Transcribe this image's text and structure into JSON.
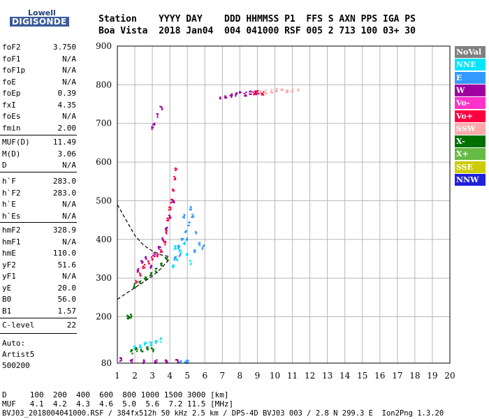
{
  "logo": {
    "line1": "Lowell",
    "line2": "DIGISONDE"
  },
  "header": {
    "line1": "Station    YYYY DAY    DDD HHMMSS P1  FFS S AXN PPS IGA PS",
    "line2": "Boa Vista  2018 Jan04  004 041000 RSF 005 2 713 100 03+ 30"
  },
  "params_group1": [
    {
      "key": "foF2",
      "value": "3.750"
    },
    {
      "key": "foF1",
      "value": "N/A"
    },
    {
      "key": "foF1p",
      "value": "N/A"
    },
    {
      "key": "foE",
      "value": "N/A"
    },
    {
      "key": "foEp",
      "value": "0.39"
    },
    {
      "key": "fxI",
      "value": "4.35"
    },
    {
      "key": "foEs",
      "value": "N/A"
    },
    {
      "key": "fmin",
      "value": "2.00"
    }
  ],
  "params_group2": [
    {
      "key": "MUF(D)",
      "value": "11.49"
    },
    {
      "key": "M(D)",
      "value": "3.06"
    },
    {
      "key": "D",
      "value": "N/A"
    }
  ],
  "params_group3": [
    {
      "key": "h`F",
      "value": "283.0"
    },
    {
      "key": "h`F2",
      "value": "283.0"
    },
    {
      "key": "h`E",
      "value": "N/A"
    },
    {
      "key": "h`Es",
      "value": "N/A"
    }
  ],
  "params_group4": [
    {
      "key": "hmF2",
      "value": "328.9"
    },
    {
      "key": "hmF1",
      "value": "N/A"
    },
    {
      "key": "hmE",
      "value": "110.0"
    },
    {
      "key": "yF2",
      "value": "51.6"
    },
    {
      "key": "yF1",
      "value": "N/A"
    },
    {
      "key": "yE",
      "value": "20.0"
    },
    {
      "key": "B0",
      "value": "56.0"
    },
    {
      "key": "B1",
      "value": "1.57"
    }
  ],
  "params_group5": [
    {
      "key": "C-level",
      "value": "22"
    }
  ],
  "auto": {
    "line1": "Auto:",
    "line2": "Artist5",
    "line3": "500200"
  },
  "footer": {
    "line1": "D     100  200  400  600  800 1000 1500 3000 [km]",
    "line2": "MUF   4.1  4.2  4.3  4.6  5.0  5.6  7.2 11.5 [MHz]",
    "line3": "BVJ03_2018004041000.RSF / 384fx512h 50 kHz 2.5 km / DPS-4D BVJ03 003 / 2.8 N 299.3 E  Ion2Png 1.3.20"
  },
  "legend": [
    {
      "label": "NoVal",
      "color": "#808080"
    },
    {
      "label": "NNE",
      "color": "#00e5ff"
    },
    {
      "label": "E",
      "color": "#3399ff"
    },
    {
      "label": "W",
      "color": "#a000a0"
    },
    {
      "label": "Vo-",
      "color": "#ff33cc"
    },
    {
      "label": "Vo+",
      "color": "#ff0040"
    },
    {
      "label": "SSW",
      "color": "#ffaaaa"
    },
    {
      "label": "X-",
      "color": "#007000"
    },
    {
      "label": "X+",
      "color": "#66bb44"
    },
    {
      "label": "SSE",
      "color": "#cccc00"
    },
    {
      "label": "NNW",
      "color": "#2020dd"
    }
  ],
  "chart_data": {
    "type": "scatter",
    "xlim": [
      1,
      20
    ],
    "ylim": [
      80,
      900
    ],
    "x_ticks": [
      1,
      2,
      3,
      4,
      5,
      6,
      7,
      8,
      9,
      10,
      11,
      12,
      13,
      14,
      15,
      16,
      17,
      18,
      19,
      20
    ],
    "y_ticks": [
      80,
      200,
      300,
      400,
      500,
      600,
      700,
      800,
      900
    ],
    "grid": true,
    "clusters": [
      {
        "name": "F2 trace",
        "color": "#ff0040",
        "points": [
          [
            2.1,
            290
          ],
          [
            2.3,
            310
          ],
          [
            2.5,
            330
          ],
          [
            2.8,
            340
          ],
          [
            3.0,
            350
          ],
          [
            3.3,
            360
          ],
          [
            3.5,
            370
          ],
          [
            3.7,
            390
          ],
          [
            3.8,
            420
          ],
          [
            3.9,
            450
          ],
          [
            4.0,
            480
          ],
          [
            4.1,
            500
          ],
          [
            4.2,
            530
          ],
          [
            4.3,
            560
          ],
          [
            4.35,
            580
          ]
        ]
      },
      {
        "name": "F2 W",
        "color": "#a000a0",
        "points": [
          [
            2.2,
            320
          ],
          [
            2.4,
            340
          ],
          [
            2.6,
            350
          ],
          [
            2.9,
            330
          ],
          [
            3.1,
            360
          ],
          [
            3.4,
            380
          ],
          [
            3.6,
            400
          ],
          [
            3.8,
            430
          ],
          [
            4.0,
            460
          ],
          [
            4.2,
            500
          ]
        ]
      },
      {
        "name": "F2 E",
        "color": "#3399ff",
        "points": [
          [
            4.3,
            350
          ],
          [
            4.5,
            380
          ],
          [
            4.7,
            400
          ],
          [
            4.9,
            420
          ],
          [
            5.1,
            440
          ],
          [
            5.3,
            460
          ],
          [
            5.5,
            420
          ],
          [
            5.7,
            390
          ],
          [
            5.9,
            380
          ],
          [
            4.8,
            460
          ],
          [
            5.2,
            480
          ],
          [
            4.6,
            360
          ],
          [
            5.0,
            400
          ],
          [
            5.4,
            370
          ]
        ]
      },
      {
        "name": "F2 NNE",
        "color": "#00e5ff",
        "points": [
          [
            4.2,
            330
          ],
          [
            4.4,
            350
          ],
          [
            4.6,
            370
          ],
          [
            4.8,
            390
          ],
          [
            5.0,
            360
          ],
          [
            5.2,
            340
          ],
          [
            4.3,
            380
          ]
        ]
      },
      {
        "name": "X trace",
        "color": "#007000",
        "points": [
          [
            2.0,
            280
          ],
          [
            2.3,
            290
          ],
          [
            2.6,
            300
          ],
          [
            2.9,
            310
          ],
          [
            3.2,
            320
          ],
          [
            3.5,
            335
          ],
          [
            3.8,
            350
          ]
        ]
      },
      {
        "name": "Upper W",
        "color": "#a000a0",
        "points": [
          [
            6.9,
            768
          ],
          [
            7.2,
            770
          ],
          [
            7.5,
            772
          ],
          [
            7.8,
            775
          ],
          [
            8.0,
            778
          ],
          [
            8.3,
            776
          ],
          [
            8.6,
            779
          ],
          [
            8.9,
            780
          ]
        ]
      },
      {
        "name": "Upper SSW",
        "color": "#ffaaaa",
        "points": [
          [
            9.2,
            780
          ],
          [
            9.5,
            782
          ],
          [
            9.8,
            784
          ],
          [
            10.1,
            786
          ],
          [
            10.4,
            784
          ],
          [
            10.7,
            782
          ],
          [
            11.0,
            786
          ],
          [
            11.3,
            788
          ]
        ]
      },
      {
        "name": "Upper Vo+",
        "color": "#ff0040",
        "points": [
          [
            8.8,
            778
          ],
          [
            9.0,
            780
          ],
          [
            9.3,
            779
          ]
        ]
      },
      {
        "name": "Oblique",
        "color": "#a000a0",
        "points": [
          [
            3.0,
            690
          ],
          [
            3.1,
            700
          ],
          [
            3.3,
            720
          ],
          [
            3.5,
            740
          ]
        ]
      },
      {
        "name": "E region",
        "color": "#00e5ff",
        "points": [
          [
            2.0,
            120
          ],
          [
            2.3,
            125
          ],
          [
            2.6,
            130
          ],
          [
            2.9,
            130
          ],
          [
            3.2,
            135
          ],
          [
            3.5,
            140
          ]
        ]
      },
      {
        "name": "Es low",
        "color": "#007000",
        "points": [
          [
            1.8,
            110
          ],
          [
            2.1,
            115
          ],
          [
            2.4,
            115
          ],
          [
            2.7,
            118
          ],
          [
            3.0,
            115
          ]
        ]
      },
      {
        "name": "Low W",
        "color": "#a000a0",
        "points": [
          [
            1.2,
            90
          ],
          [
            1.8,
            85
          ],
          [
            2.5,
            85
          ],
          [
            3.2,
            85
          ],
          [
            3.8,
            85
          ],
          [
            4.4,
            85
          ]
        ]
      },
      {
        "name": "Low E",
        "color": "#3399ff",
        "points": [
          [
            4.6,
            84
          ],
          [
            4.9,
            84
          ],
          [
            5.0,
            84
          ]
        ]
      },
      {
        "name": "Low X",
        "color": "#007000",
        "points": [
          [
            1.6,
            200
          ],
          [
            1.7,
            200
          ],
          [
            1.8,
            202
          ]
        ]
      }
    ],
    "curve_lower": {
      "color": "#000000",
      "dashed": true,
      "points": [
        [
          1,
          245
        ],
        [
          1.5,
          260
        ],
        [
          2,
          275
        ],
        [
          2.5,
          290
        ],
        [
          3,
          305
        ],
        [
          3.5,
          325
        ],
        [
          4,
          350
        ]
      ]
    },
    "curve_upper": {
      "color": "#000000",
      "dashed": true,
      "points": [
        [
          1,
          490
        ],
        [
          1.5,
          450
        ],
        [
          2,
          410
        ],
        [
          2.5,
          385
        ],
        [
          3,
          370
        ],
        [
          3.5,
          360
        ],
        [
          4,
          355
        ]
      ]
    }
  }
}
